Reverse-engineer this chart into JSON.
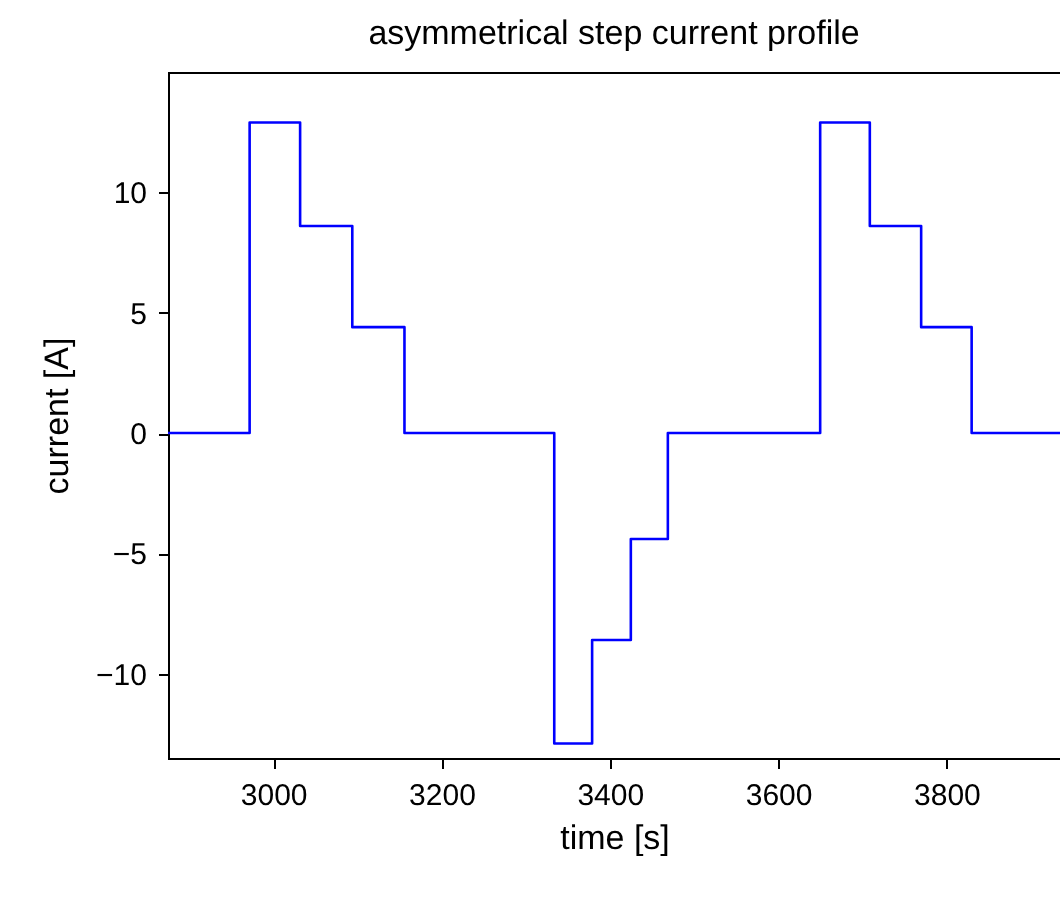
{
  "chart_data": {
    "type": "step",
    "title": "asymmetrical step current profile",
    "xlabel": "time [s]",
    "ylabel": "current [A]",
    "x": [
      2875,
      2972,
      3032,
      3094,
      3156,
      3334,
      3379,
      3425,
      3469,
      3650,
      3709,
      3770,
      3830,
      3935
    ],
    "series": [
      {
        "color": "#0000ff",
        "values": [
          0,
          12.9,
          8.6,
          4.4,
          0,
          -12.9,
          -8.6,
          -4.4,
          0,
          12.9,
          8.6,
          4.4,
          0,
          0
        ]
      }
    ],
    "xlim": [
      2875,
      3935
    ],
    "xticks": [
      3000,
      3200,
      3400,
      3600,
      3800
    ],
    "ylim": [
      -13.5,
      15
    ],
    "yticks": [
      -10,
      -5,
      0,
      5,
      10
    ],
    "grid": false,
    "marker": "none",
    "line_style": "solid"
  }
}
